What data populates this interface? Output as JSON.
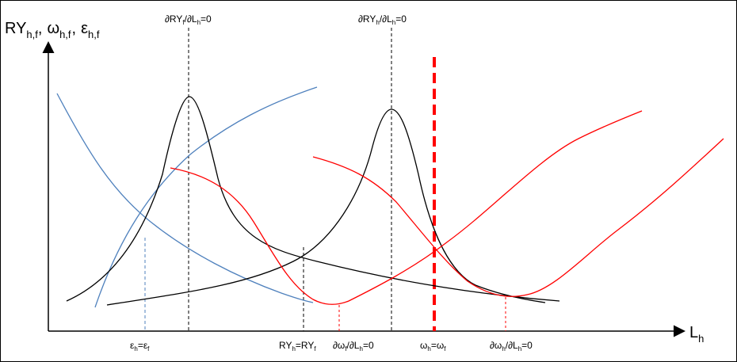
{
  "axes": {
    "y_label_main": "RY",
    "y_label_sub": "h,f",
    "y_label_omega": "ω",
    "y_label_omega_sub": "h,f",
    "y_label_eps": "ε",
    "y_label_eps_sub": "h,f",
    "y_separator": ",",
    "x_label_main": "L",
    "x_label_sub": "h"
  },
  "top_labels": {
    "left": {
      "a": "∂RY",
      "a_sub": "f",
      "b": "/∂L",
      "b_sub": "h",
      "c": "=0"
    },
    "right": {
      "a": "∂RY",
      "a_sub": "h",
      "b": "/∂L",
      "b_sub": "h",
      "c": "=0"
    }
  },
  "bottom_labels": {
    "eps": {
      "a": "ε",
      "a_sub": "h",
      "b": "=ε",
      "b_sub": "f"
    },
    "ry": {
      "a": "RY",
      "a_sub": "h",
      "b": "=RY",
      "b_sub": "f"
    },
    "domega_f": {
      "a": "∂ω",
      "a_sub": "f",
      "b": "/∂L",
      "b_sub": "h",
      "c": "=0"
    },
    "omega_eq": {
      "a": "ω",
      "a_sub": "h",
      "b": "=ω",
      "b_sub": "f"
    },
    "domega_h": {
      "a": "∂ω",
      "a_sub": "h",
      "b": "/∂L",
      "b_sub": "h",
      "c": "=0"
    }
  },
  "colors": {
    "axis": "#000000",
    "blue_curve": "#4f81bd",
    "red_curve": "#ff0000",
    "black_curve": "#000000",
    "blue_dashed": "#4f81bd",
    "red_dashed": "#ff0000"
  }
}
